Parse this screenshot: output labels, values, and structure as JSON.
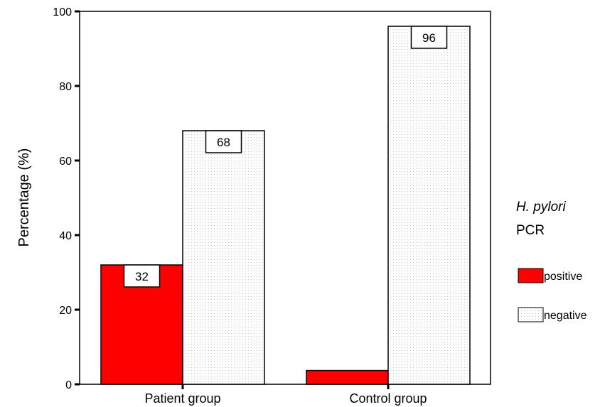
{
  "chart_data": {
    "type": "bar",
    "categories": [
      "Patient group",
      "Control group"
    ],
    "series": [
      {
        "name": "positive",
        "values": [
          32,
          3.7
        ],
        "color": "#ff0000"
      },
      {
        "name": "negative",
        "values": [
          68,
          96
        ],
        "color": "#ffffff"
      }
    ],
    "data_labels": [
      {
        "series": 0,
        "category": 0,
        "text": "32"
      },
      {
        "series": 1,
        "category": 0,
        "text": "68"
      },
      {
        "series": 1,
        "category": 1,
        "text": "96"
      }
    ],
    "title": "",
    "xlabel": "",
    "ylabel": "Percentage (%)",
    "ylim": [
      0,
      100
    ],
    "yticks": [
      0,
      20,
      40,
      60,
      80,
      100
    ],
    "grid": false,
    "legend": {
      "placement": "right",
      "title_italic": "H. pylori",
      "title_plain": "PCR"
    }
  }
}
